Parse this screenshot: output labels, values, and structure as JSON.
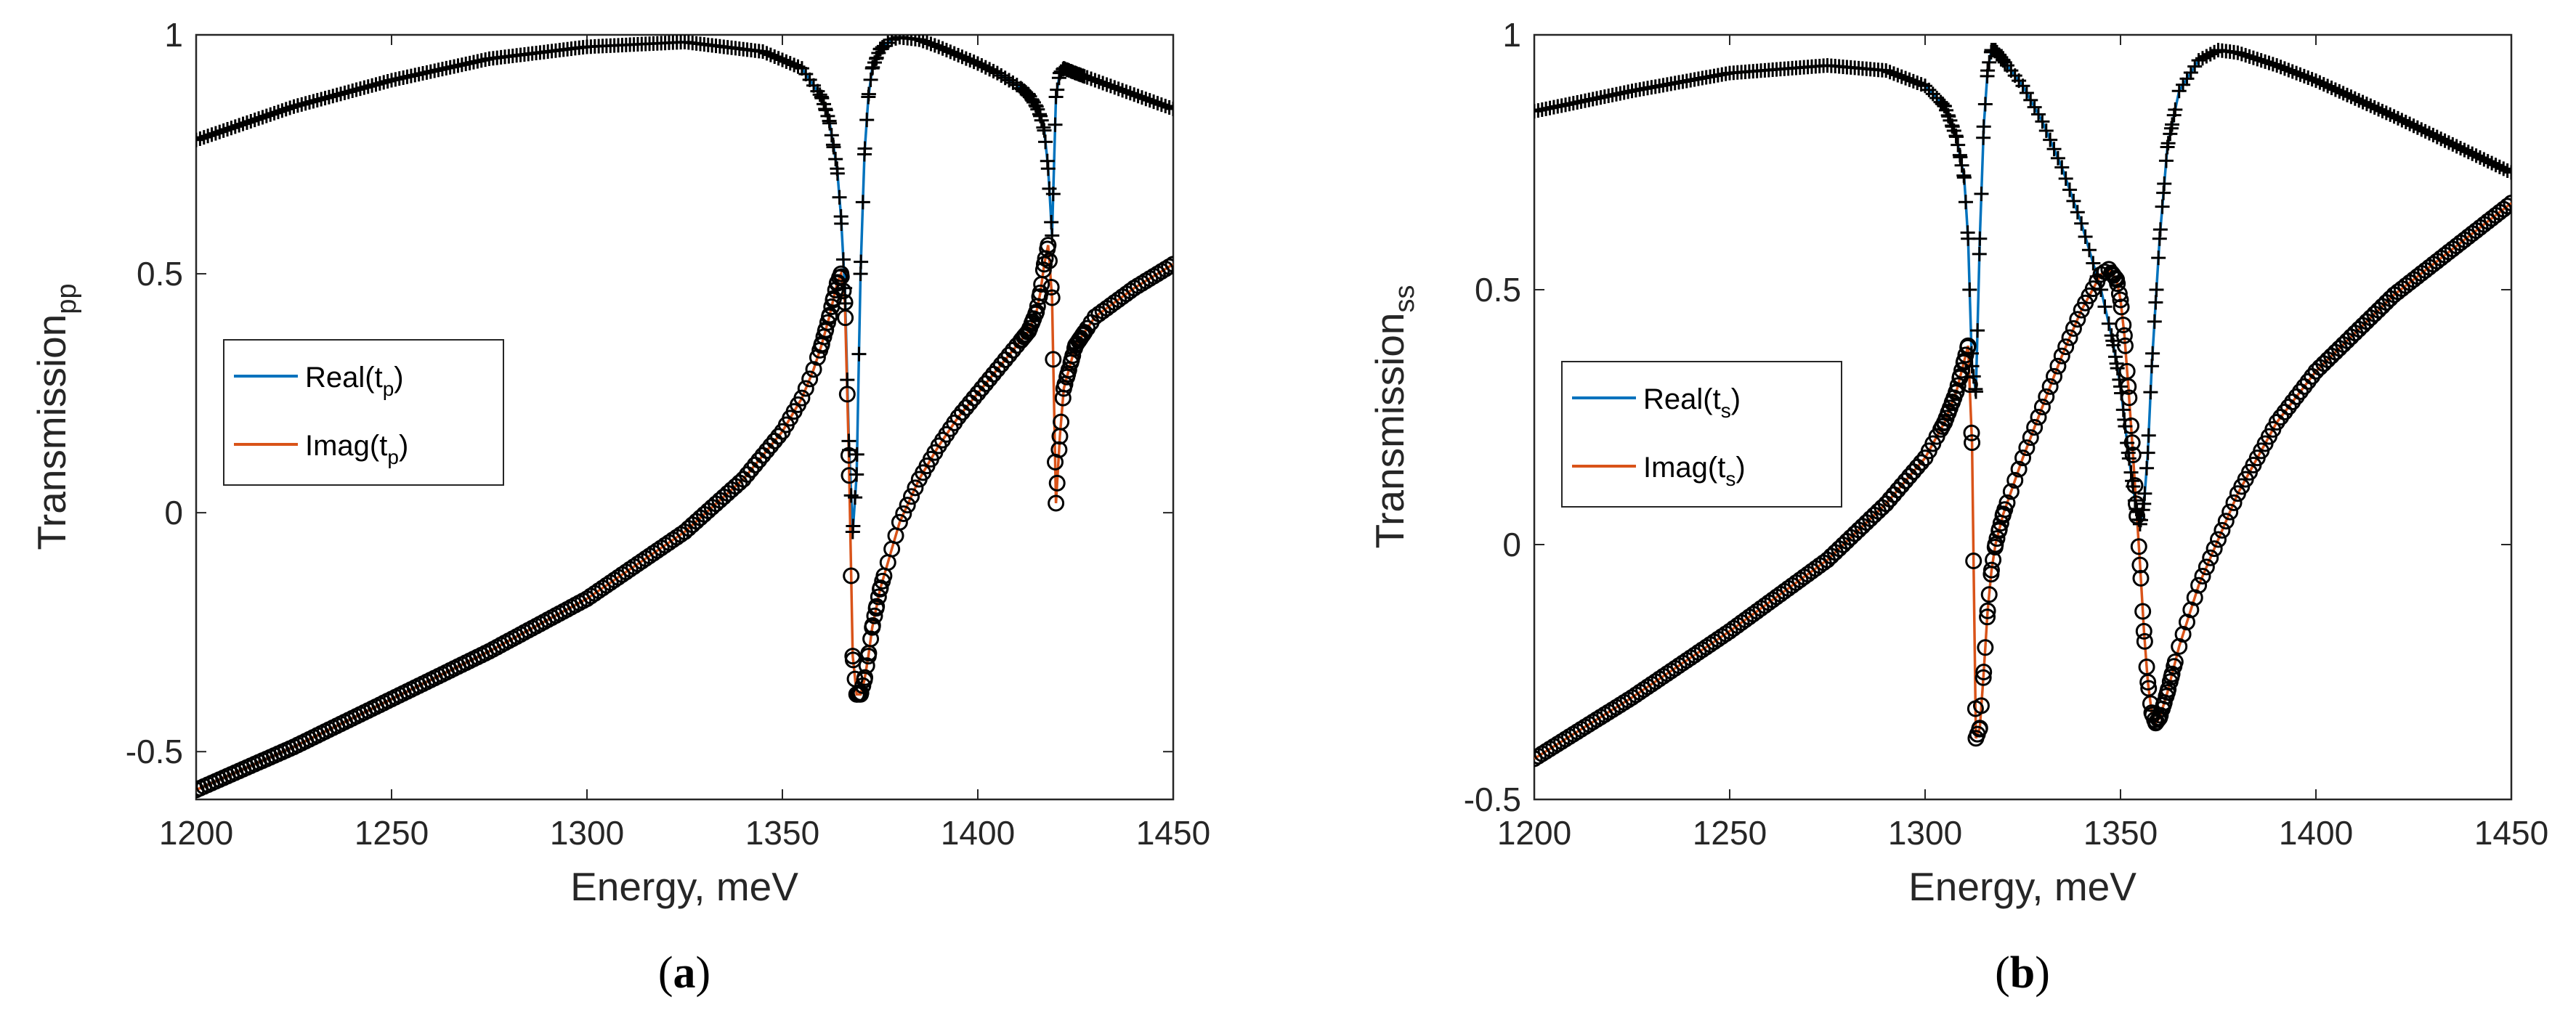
{
  "chart_data": [
    {
      "type": "line",
      "panel_label": "a",
      "xlabel": "Energy, meV",
      "ylabel": "Transmission",
      "ylabel_sub": "pp",
      "xlim": [
        1200,
        1450
      ],
      "ylim": [
        -0.6,
        1
      ],
      "xticks": [
        1200,
        1250,
        1300,
        1350,
        1400,
        1450
      ],
      "xtick_labels": [
        "1200",
        "1250",
        "1300",
        "1350",
        "1400",
        "1450"
      ],
      "yticks": [
        -0.5,
        0,
        0.5,
        1
      ],
      "ytick_labels": [
        "-0.5",
        "0",
        "0.5",
        "1"
      ],
      "legend_position": "center-left",
      "resonances": [
        1367.6,
        1419.3
      ],
      "series": [
        {
          "name": "Real(t_p)",
          "legend_main": "Real(t",
          "legend_sub": "p",
          "legend_close": ")",
          "color": "#0072BD",
          "marker": "+",
          "x": [
            1200,
            1225,
            1250,
            1275,
            1300,
            1325,
            1345,
            1355,
            1360,
            1362,
            1364,
            1365,
            1366,
            1367,
            1368,
            1369,
            1370,
            1371,
            1372,
            1373,
            1375,
            1378,
            1380,
            1385,
            1390,
            1400,
            1405,
            1410,
            1413,
            1415,
            1416,
            1417,
            1418,
            1419,
            1420,
            1421,
            1422,
            1425,
            1430,
            1440,
            1450
          ],
          "values": [
            0.78,
            0.85,
            0.905,
            0.95,
            0.975,
            0.985,
            0.965,
            0.93,
            0.87,
            0.82,
            0.72,
            0.62,
            0.47,
            0.15,
            -0.04,
            0.08,
            0.5,
            0.75,
            0.87,
            0.93,
            0.97,
            0.99,
            0.995,
            0.99,
            0.975,
            0.94,
            0.92,
            0.895,
            0.875,
            0.85,
            0.83,
            0.8,
            0.72,
            0.58,
            0.87,
            0.92,
            0.93,
            0.92,
            0.905,
            0.875,
            0.845
          ]
        },
        {
          "name": "Imag(t_p)",
          "legend_main": "Imag(t",
          "legend_sub": "p",
          "legend_close": ")",
          "color": "#D95319",
          "marker": "o",
          "x": [
            1200,
            1225,
            1250,
            1275,
            1300,
            1325,
            1340,
            1350,
            1355,
            1358,
            1360,
            1362,
            1364,
            1365,
            1366,
            1367,
            1368,
            1369,
            1370,
            1371,
            1372,
            1373,
            1375,
            1380,
            1385,
            1390,
            1395,
            1400,
            1405,
            1410,
            1413,
            1415,
            1416,
            1417,
            1418,
            1419,
            1420,
            1421,
            1422,
            1425,
            1430,
            1440,
            1450
          ],
          "values": [
            -0.58,
            -0.49,
            -0.39,
            -0.29,
            -0.18,
            -0.04,
            0.07,
            0.17,
            0.24,
            0.3,
            0.35,
            0.41,
            0.48,
            0.5,
            0.44,
            0.12,
            -0.3,
            -0.38,
            -0.38,
            -0.35,
            -0.3,
            -0.24,
            -0.16,
            -0.02,
            0.07,
            0.14,
            0.2,
            0.25,
            0.3,
            0.35,
            0.38,
            0.42,
            0.46,
            0.52,
            0.56,
            0.45,
            0.02,
            0.16,
            0.26,
            0.35,
            0.41,
            0.47,
            0.52
          ]
        }
      ]
    },
    {
      "type": "line",
      "panel_label": "b",
      "xlabel": "Energy, meV",
      "ylabel": "Transmission",
      "ylabel_sub": "ss",
      "xlim": [
        1200,
        1450
      ],
      "ylim": [
        -0.5,
        1
      ],
      "xticks": [
        1200,
        1250,
        1300,
        1350,
        1400,
        1450
      ],
      "xtick_labels": [
        "1200",
        "1250",
        "1300",
        "1350",
        "1400",
        "1450"
      ],
      "yticks": [
        -0.5,
        0,
        0.5,
        1
      ],
      "ytick_labels": [
        "-0.5",
        "0",
        "0.5",
        "1"
      ],
      "legend_position": "center-left",
      "resonances": [
        1312.4,
        1355.7
      ],
      "series": [
        {
          "name": "Real(t_s)",
          "legend_main": "Real(t",
          "legend_sub": "s",
          "legend_close": ")",
          "color": "#0072BD",
          "marker": "+",
          "x": [
            1200,
            1225,
            1250,
            1275,
            1290,
            1300,
            1305,
            1308,
            1310,
            1311,
            1312,
            1313,
            1314,
            1315,
            1316,
            1317,
            1318,
            1320,
            1325,
            1330,
            1335,
            1340,
            1345,
            1348,
            1350,
            1352,
            1354,
            1355,
            1356,
            1357,
            1358,
            1360,
            1362,
            1365,
            1370,
            1375,
            1380,
            1390,
            1400,
            1420,
            1450
          ],
          "values": [
            0.85,
            0.89,
            0.925,
            0.94,
            0.93,
            0.9,
            0.86,
            0.8,
            0.72,
            0.6,
            0.35,
            0.3,
            0.6,
            0.82,
            0.93,
            0.97,
            0.97,
            0.95,
            0.9,
            0.83,
            0.74,
            0.63,
            0.5,
            0.4,
            0.31,
            0.18,
            0.07,
            0.04,
            0.08,
            0.18,
            0.35,
            0.6,
            0.78,
            0.89,
            0.95,
            0.97,
            0.965,
            0.94,
            0.91,
            0.84,
            0.73
          ]
        },
        {
          "name": "Imag(t_s)",
          "legend_main": "Imag(t",
          "legend_sub": "s",
          "legend_close": ")",
          "color": "#D95319",
          "marker": "o",
          "x": [
            1200,
            1225,
            1250,
            1275,
            1290,
            1300,
            1305,
            1308,
            1310,
            1311,
            1312,
            1313,
            1314,
            1315,
            1316,
            1317,
            1318,
            1320,
            1325,
            1330,
            1335,
            1340,
            1345,
            1347,
            1349,
            1350,
            1351,
            1352,
            1353,
            1354,
            1355,
            1356,
            1357,
            1358,
            1359,
            1360,
            1362,
            1365,
            1370,
            1380,
            1390,
            1400,
            1420,
            1450
          ],
          "values": [
            -0.42,
            -0.3,
            -0.17,
            -0.03,
            0.08,
            0.17,
            0.24,
            0.3,
            0.36,
            0.39,
            0.2,
            -0.38,
            -0.36,
            -0.25,
            -0.13,
            -0.05,
            0.0,
            0.06,
            0.17,
            0.27,
            0.37,
            0.46,
            0.53,
            0.54,
            0.52,
            0.48,
            0.41,
            0.31,
            0.2,
            0.08,
            -0.04,
            -0.17,
            -0.27,
            -0.33,
            -0.35,
            -0.34,
            -0.29,
            -0.2,
            -0.08,
            0.1,
            0.24,
            0.34,
            0.49,
            0.67
          ]
        }
      ]
    }
  ]
}
